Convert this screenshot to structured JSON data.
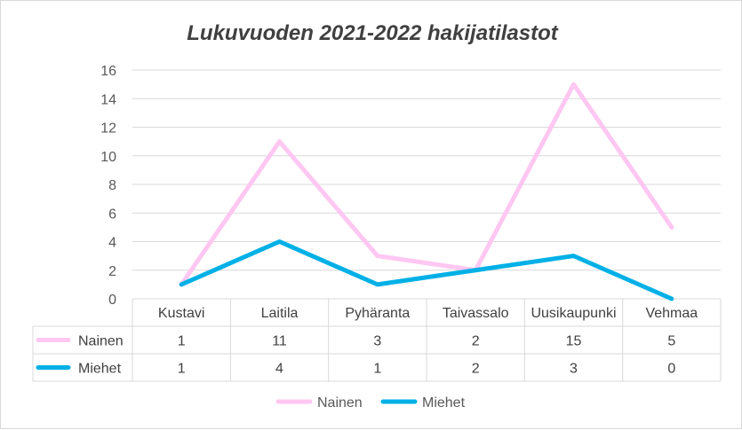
{
  "chart_data": {
    "type": "line",
    "title": "Lukuvuoden  2021-2022 hakijatilastot",
    "categories": [
      "Kustavi",
      "Laitila",
      "Pyhäranta",
      "Taivassalo",
      "Uusikaupunki",
      "Vehmaa"
    ],
    "series": [
      {
        "name": "Nainen",
        "values": [
          1,
          11,
          3,
          2,
          15,
          5
        ],
        "color": "#ffc7f2"
      },
      {
        "name": "Miehet",
        "values": [
          1,
          4,
          1,
          2,
          3,
          0
        ],
        "color": "#00b0e6"
      }
    ],
    "ylim": [
      0,
      16
    ],
    "yticks": [
      "0",
      "2",
      "4",
      "6",
      "8",
      "10",
      "12",
      "14",
      "16"
    ],
    "grid": true,
    "legend": "bottom",
    "data_table": true
  }
}
